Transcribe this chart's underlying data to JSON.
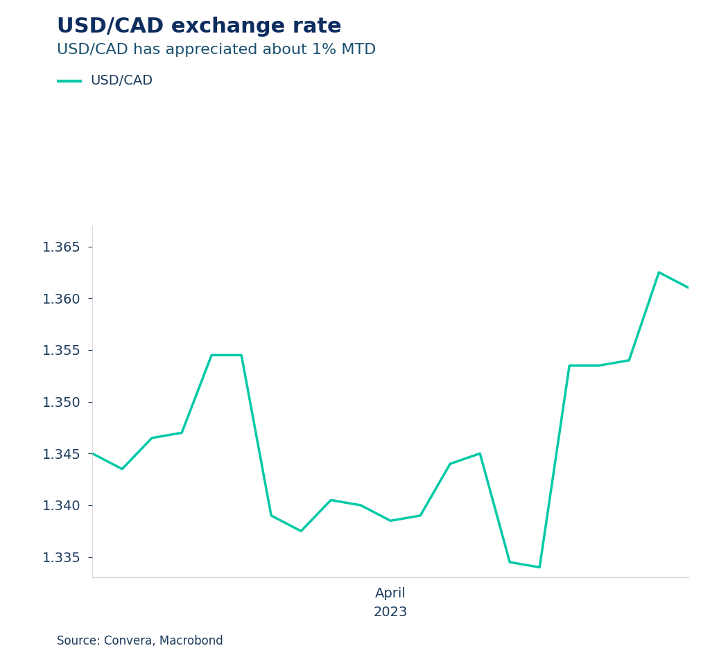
{
  "title": "USD/CAD exchange rate",
  "subtitle": "USD/CAD has appreciated about 1% MTD",
  "legend_label": "USD/CAD",
  "xlabel": "April\n2023",
  "source": "Source: Convera, Macrobond",
  "line_color": "#00C9A7",
  "title_color": "#0d2d5e",
  "subtitle_color": "#1a5070",
  "axis_color": "#cccccc",
  "tick_color": "#1a3a5c",
  "background_color": "#ffffff",
  "ylim": [
    1.333,
    1.367
  ],
  "yticks": [
    1.335,
    1.34,
    1.345,
    1.35,
    1.355,
    1.36,
    1.365
  ],
  "x_values": [
    0,
    1,
    2,
    3,
    4,
    5,
    6,
    7,
    8,
    9,
    10,
    11,
    12,
    13,
    14,
    15,
    16,
    17,
    18,
    19,
    20
  ],
  "y_values": [
    1.345,
    1.3435,
    1.3465,
    1.347,
    1.3545,
    1.3545,
    1.339,
    1.3375,
    1.3405,
    1.34,
    1.3385,
    1.339,
    1.344,
    1.345,
    1.3345,
    1.334,
    1.3535,
    1.3535,
    1.354,
    1.3625,
    1.361
  ],
  "line_width": 2.5,
  "title_fontsize": 22,
  "subtitle_fontsize": 16,
  "tick_fontsize": 14,
  "legend_fontsize": 14,
  "source_fontsize": 12
}
